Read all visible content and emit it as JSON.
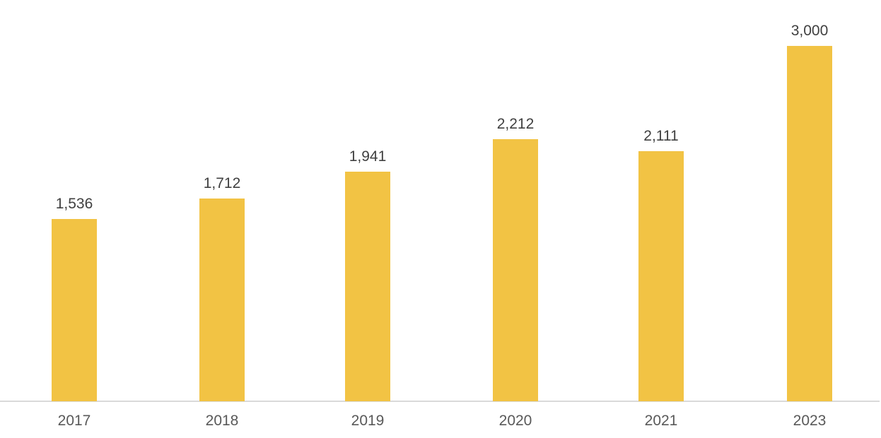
{
  "chart_data": {
    "type": "bar",
    "title": "",
    "xlabel": "",
    "ylabel": "",
    "categories": [
      "2017",
      "2018",
      "2019",
      "2020",
      "2021",
      "2023"
    ],
    "values": [
      1536,
      1712,
      1941,
      2212,
      2111,
      3000
    ],
    "value_labels": [
      "1,536",
      "1,712",
      "1,941",
      "2,212",
      "2,111",
      "3,000"
    ],
    "ylim": [
      0,
      3000
    ],
    "grid": false,
    "legend": false,
    "data_labels_visible": true,
    "single_series": true,
    "colors": {
      "bar": "#F2C344",
      "value_label": "#404040",
      "category_label": "#595959",
      "axis_line": "#D9D9D9",
      "background": "#FFFFFF"
    }
  }
}
